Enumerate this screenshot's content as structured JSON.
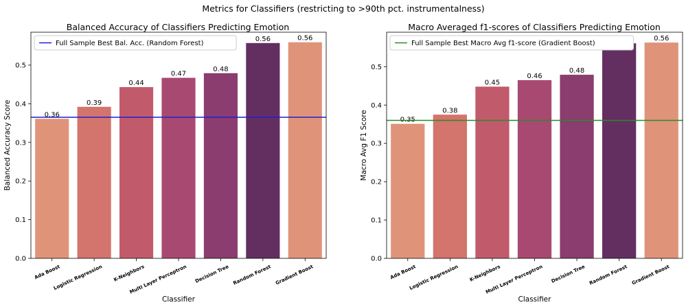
{
  "figure": {
    "suptitle": "Metrics for Classifiers (restricting to >90th pct. instrumentalness)"
  },
  "chart_data": [
    {
      "type": "bar",
      "title": "Balanced Accuracy of Classifiers Predicting Emotion",
      "xlabel": "Classifier",
      "ylabel": "Balanced Accuracy Score",
      "categories": [
        "Ada Boost",
        "Logistic Regression",
        "K-Neighbors",
        "Multi Layer Perceptron",
        "Decision Tree",
        "Random Forest",
        "Gradient Boost"
      ],
      "values": [
        0.361,
        0.392,
        0.443,
        0.467,
        0.479,
        0.557,
        0.559
      ],
      "data_labels": [
        "0.36",
        "0.39",
        "0.44",
        "0.47",
        "0.48",
        "0.56",
        "0.56"
      ],
      "colors": [
        "#df947a",
        "#d3746d",
        "#c15b6b",
        "#a84971",
        "#8a3d6e",
        "#632f60",
        "#df947a"
      ],
      "yticks": [
        0.0,
        0.1,
        0.2,
        0.3,
        0.4,
        0.5
      ],
      "ytick_labels": [
        "0.0",
        "0.1",
        "0.2",
        "0.3",
        "0.4",
        "0.5"
      ],
      "ylim": [
        0,
        0.585
      ],
      "reference_line": {
        "value": 0.365,
        "color": "#1f1fd6",
        "label": "Full Sample Best Bal. Acc. (Random Forest)"
      },
      "legend": "top-left",
      "grid": false
    },
    {
      "type": "bar",
      "title": "Macro Averaged f1-scores of Classifiers Predicting Emotion",
      "xlabel": "Classifier",
      "ylabel": "Macro Avg F1 Score",
      "categories": [
        "Ada Boost",
        "Logistic Regression",
        "K-Neighbors",
        "Multi Layer Perceptron",
        "Decision Tree",
        "Random Forest",
        "Gradient Boost"
      ],
      "values": [
        0.351,
        0.375,
        0.448,
        0.465,
        0.479,
        0.561,
        0.563
      ],
      "data_labels": [
        "0.35",
        "0.38",
        "0.45",
        "0.46",
        "0.48",
        "0.56",
        "0.56"
      ],
      "colors": [
        "#df947a",
        "#d3746d",
        "#c15b6b",
        "#a84971",
        "#8a3d6e",
        "#632f60",
        "#df947a"
      ],
      "yticks": [
        0.0,
        0.1,
        0.2,
        0.3,
        0.4,
        0.5
      ],
      "ytick_labels": [
        "0.0",
        "0.1",
        "0.2",
        "0.3",
        "0.4",
        "0.5"
      ],
      "ylim": [
        0,
        0.59
      ],
      "reference_line": {
        "value": 0.36,
        "color": "#2a8a2a",
        "label": "Full Sample Best Macro Avg f1-score (Gradient Boost)"
      },
      "legend": "top-left",
      "grid": false
    }
  ]
}
